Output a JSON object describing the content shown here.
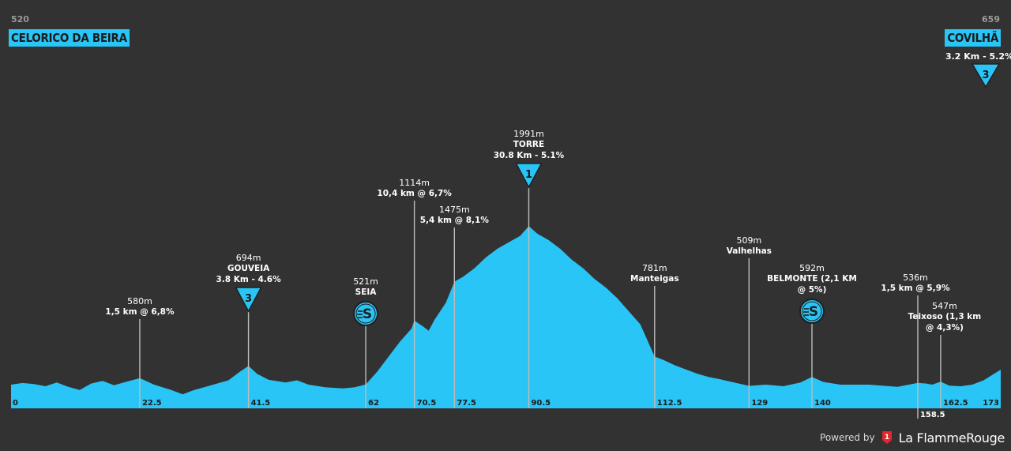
{
  "start": {
    "name": "CELORICO DA BEIRA",
    "altitude": "520"
  },
  "finish": {
    "name": "COVILHÃ",
    "altitude": "659",
    "climb": "3.2 Km - 5.2%",
    "category": "3"
  },
  "colors": {
    "background": "#323232",
    "profile": "#29c5f6",
    "line": "#bdbdbd",
    "text": "#ffffff"
  },
  "chart_data": {
    "type": "area",
    "xlim": [
      0,
      173
    ],
    "ylim": [
      300,
      2000
    ],
    "profile": [
      [
        0,
        520
      ],
      [
        2,
        535
      ],
      [
        4,
        525
      ],
      [
        6,
        505
      ],
      [
        8,
        540
      ],
      [
        10,
        500
      ],
      [
        12,
        470
      ],
      [
        14,
        530
      ],
      [
        16,
        555
      ],
      [
        18,
        515
      ],
      [
        20,
        545
      ],
      [
        22.5,
        580
      ],
      [
        25,
        520
      ],
      [
        28,
        470
      ],
      [
        30,
        430
      ],
      [
        32,
        470
      ],
      [
        34,
        500
      ],
      [
        36,
        530
      ],
      [
        38,
        560
      ],
      [
        40,
        640
      ],
      [
        41.5,
        694
      ],
      [
        43,
        620
      ],
      [
        45,
        565
      ],
      [
        48,
        540
      ],
      [
        50,
        560
      ],
      [
        52,
        520
      ],
      [
        55,
        495
      ],
      [
        58,
        485
      ],
      [
        60,
        495
      ],
      [
        62,
        521
      ],
      [
        64,
        640
      ],
      [
        66,
        780
      ],
      [
        68,
        920
      ],
      [
        70,
        1040
      ],
      [
        70.5,
        1114
      ],
      [
        72,
        1060
      ],
      [
        73,
        1020
      ],
      [
        74,
        1120
      ],
      [
        76,
        1280
      ],
      [
        77.5,
        1475
      ],
      [
        79,
        1520
      ],
      [
        81,
        1600
      ],
      [
        83,
        1700
      ],
      [
        85,
        1780
      ],
      [
        87,
        1840
      ],
      [
        89,
        1900
      ],
      [
        90.5,
        1991
      ],
      [
        92,
        1920
      ],
      [
        94,
        1860
      ],
      [
        96,
        1780
      ],
      [
        98,
        1680
      ],
      [
        100,
        1600
      ],
      [
        102,
        1500
      ],
      [
        104,
        1420
      ],
      [
        106,
        1320
      ],
      [
        108,
        1200
      ],
      [
        110,
        1080
      ],
      [
        112.5,
        781
      ],
      [
        114,
        750
      ],
      [
        116,
        700
      ],
      [
        118,
        660
      ],
      [
        120,
        620
      ],
      [
        122,
        590
      ],
      [
        124,
        570
      ],
      [
        126,
        545
      ],
      [
        129,
        509
      ],
      [
        132,
        520
      ],
      [
        135,
        505
      ],
      [
        138,
        540
      ],
      [
        140,
        592
      ],
      [
        142,
        545
      ],
      [
        145,
        520
      ],
      [
        150,
        520
      ],
      [
        155,
        500
      ],
      [
        158.5,
        536
      ],
      [
        160,
        530
      ],
      [
        161,
        520
      ],
      [
        162.5,
        547
      ],
      [
        164,
        510
      ],
      [
        166,
        505
      ],
      [
        168,
        520
      ],
      [
        170,
        560
      ],
      [
        173,
        659
      ]
    ],
    "distance_ticks": [
      {
        "x": 0,
        "label": "0"
      },
      {
        "x": 22.5,
        "label": "22.5"
      },
      {
        "x": 41.5,
        "label": "41.5"
      },
      {
        "x": 62,
        "label": "62"
      },
      {
        "x": 70.5,
        "label": "70.5"
      },
      {
        "x": 77.5,
        "label": "77.5"
      },
      {
        "x": 90.5,
        "label": "90.5"
      },
      {
        "x": 112.5,
        "label": "112.5"
      },
      {
        "x": 129,
        "label": "129"
      },
      {
        "x": 140,
        "label": "140"
      },
      {
        "x": 158.5,
        "label": "158.5"
      },
      {
        "x": 162.5,
        "label": "162.5"
      },
      {
        "x": 173,
        "label": "173"
      }
    ],
    "points": [
      {
        "x": 22.5,
        "alt": "580m",
        "name": "1,5 km @ 6,8%",
        "detail": ""
      },
      {
        "x": 41.5,
        "alt": "694m",
        "name": "GOUVEIA",
        "detail": "3.8 Km - 4.6%",
        "icon": "kom-triangle",
        "category": "3"
      },
      {
        "x": 62,
        "alt": "521m",
        "name": "SEIA",
        "detail": "",
        "icon": "sprint"
      },
      {
        "x": 70.5,
        "alt": "1114m",
        "name": "10,4 km @ 6,7%",
        "detail": ""
      },
      {
        "x": 77.5,
        "alt": "1475m",
        "name": "5,4 km @ 8,1%",
        "detail": ""
      },
      {
        "x": 90.5,
        "alt": "1991m",
        "name": "TORRE",
        "detail": "30.8 Km - 5.1%",
        "icon": "kom-triangle",
        "category": "1"
      },
      {
        "x": 112.5,
        "alt": "781m",
        "name": "Manteigas",
        "detail": ""
      },
      {
        "x": 129,
        "alt": "509m",
        "name": "Valhelhas",
        "detail": ""
      },
      {
        "x": 140,
        "alt": "592m",
        "name": "BELMONTE (2,1 KM",
        "detail": "@ 5%)",
        "icon": "sprint"
      },
      {
        "x": 158.5,
        "alt": "536m",
        "name": "1,5 km @ 5,9%",
        "detail": ""
      },
      {
        "x": 162.5,
        "alt": "547m",
        "name": "Teixoso (1,3 km",
        "detail": "@ 4,3%)"
      }
    ]
  },
  "footer": {
    "powered_by": "Powered by",
    "brand": "La FlammeRouge",
    "logo_number": "1"
  }
}
